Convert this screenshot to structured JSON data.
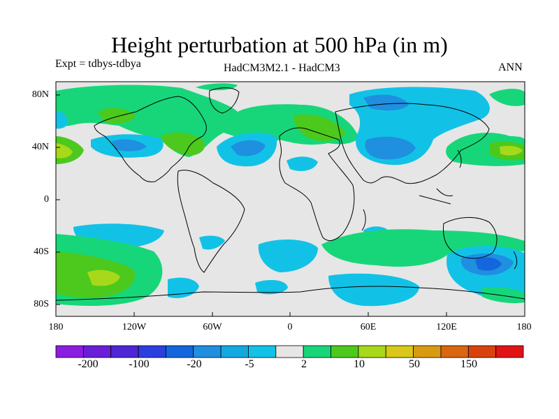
{
  "title": "Height perturbation at 500 hPa (in m)",
  "left_subtitle": "Expt = tdbys-tdbya",
  "center_subtitle": "HadCM3M2.1 - HadCM3",
  "right_subtitle": "ANN",
  "lat_ticks": [
    "80N",
    "40N",
    "0",
    "40S",
    "80S"
  ],
  "lon_ticks": [
    "180",
    "120W",
    "60W",
    "0",
    "60E",
    "120E",
    "180"
  ],
  "colorbar": {
    "colors": [
      "#8a1ee0",
      "#6a1ed8",
      "#4d27d4",
      "#2a3fde",
      "#1466dc",
      "#1f8fe0",
      "#12a9e0",
      "#12c2e6",
      "#e6e6e6",
      "#17d67a",
      "#4cc91c",
      "#a8d81a",
      "#d8c819",
      "#d99a12",
      "#d8670f",
      "#d8420e",
      "#e01414"
    ],
    "labels": [
      "-200",
      "-100",
      "-20",
      "-5",
      "2",
      "10",
      "50",
      "150"
    ]
  },
  "map": {
    "projection": "cylindrical",
    "lon_range": [
      -180,
      180
    ],
    "lat_range": [
      -90,
      90
    ]
  }
}
